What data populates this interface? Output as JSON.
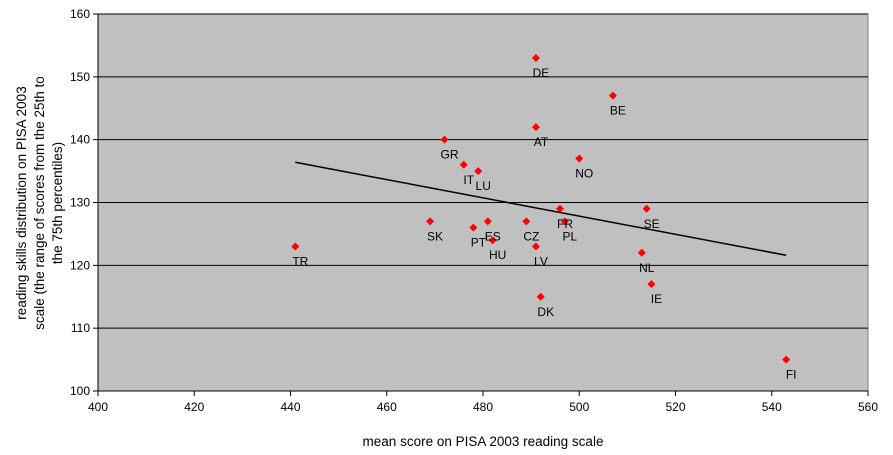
{
  "chart_data": {
    "type": "scatter",
    "title": "",
    "xlabel": "mean score on PISA 2003 reading scale",
    "ylabel_lines": [
      "reading skills distribution on PISA 2003",
      "scale (the range of scores from the 25th to",
      "the 75th percentiles)"
    ],
    "xlim": [
      400,
      560
    ],
    "ylim": [
      100,
      160
    ],
    "xticks": [
      400,
      420,
      440,
      460,
      480,
      500,
      520,
      540,
      560
    ],
    "yticks": [
      100,
      110,
      120,
      130,
      140,
      150,
      160
    ],
    "grid": "horizontal",
    "plot_background": "#c0c0c0",
    "marker_color": "#ff0000",
    "trendline_color": "#000000",
    "points": [
      {
        "label": "DE",
        "x": 491,
        "y": 153
      },
      {
        "label": "BE",
        "x": 507,
        "y": 147
      },
      {
        "label": "AT",
        "x": 491,
        "y": 142
      },
      {
        "label": "GR",
        "x": 472,
        "y": 140
      },
      {
        "label": "NO",
        "x": 500,
        "y": 137
      },
      {
        "label": "IT",
        "x": 476,
        "y": 136
      },
      {
        "label": "LU",
        "x": 479,
        "y": 135
      },
      {
        "label": "FR",
        "x": 496,
        "y": 129
      },
      {
        "label": "SE",
        "x": 514,
        "y": 129
      },
      {
        "label": "SK",
        "x": 469,
        "y": 127
      },
      {
        "label": "ES",
        "x": 481,
        "y": 127
      },
      {
        "label": "CZ",
        "x": 489,
        "y": 127
      },
      {
        "label": "PL",
        "x": 497,
        "y": 127
      },
      {
        "label": "PT",
        "x": 478,
        "y": 126
      },
      {
        "label": "HU",
        "x": 482,
        "y": 124
      },
      {
        "label": "TR",
        "x": 441,
        "y": 123
      },
      {
        "label": "LV",
        "x": 491,
        "y": 123
      },
      {
        "label": "NL",
        "x": 513,
        "y": 122
      },
      {
        "label": "IE",
        "x": 515,
        "y": 117
      },
      {
        "label": "DK",
        "x": 492,
        "y": 115
      },
      {
        "label": "FI",
        "x": 543,
        "y": 105
      }
    ],
    "trendline": {
      "x": [
        441,
        543
      ],
      "y": [
        136.4,
        121.6
      ]
    }
  }
}
